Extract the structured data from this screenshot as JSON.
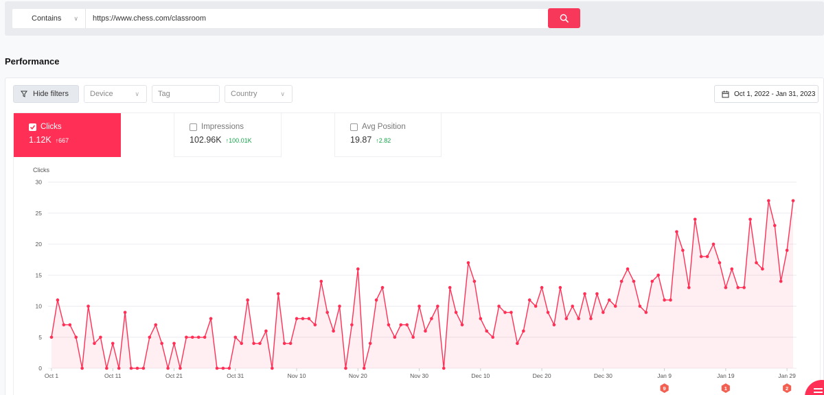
{
  "search": {
    "match_type": "Contains",
    "url": "https://www.chess.com/classroom"
  },
  "performance": {
    "title": "Performance"
  },
  "filters": {
    "hide_label": "Hide filters",
    "device_placeholder": "Device",
    "tag_placeholder": "Tag",
    "country_placeholder": "Country",
    "date_range": "Oct 1, 2022 - Jan 31, 2023"
  },
  "metrics": [
    {
      "label": "Clicks",
      "value": "1.12K",
      "delta": "↑667",
      "active": true
    },
    {
      "label": "Impressions",
      "value": "102.96K",
      "delta": "↑100.01K",
      "active": false
    },
    {
      "label": "Avg Position",
      "value": "19.87",
      "delta": "↑2.82",
      "active": false
    }
  ],
  "colors": {
    "accent": "#ff2f55",
    "positive": "#16a34a"
  },
  "chart_data": {
    "type": "area",
    "ylabel": "Clicks",
    "ylim": [
      0,
      30
    ],
    "yticks": [
      0,
      5,
      10,
      15,
      20,
      25,
      30
    ],
    "x_start": "Oct 1",
    "x_ticks": [
      {
        "label": "Oct 1",
        "day": 0
      },
      {
        "label": "Oct 11",
        "day": 10
      },
      {
        "label": "Oct 21",
        "day": 20
      },
      {
        "label": "Oct 31",
        "day": 30
      },
      {
        "label": "Nov 10",
        "day": 40
      },
      {
        "label": "Nov 20",
        "day": 50
      },
      {
        "label": "Nov 30",
        "day": 60
      },
      {
        "label": "Dec 10",
        "day": 70
      },
      {
        "label": "Dec 20",
        "day": 80
      },
      {
        "label": "Dec 30",
        "day": 90
      },
      {
        "label": "Jan 9",
        "day": 100
      },
      {
        "label": "Jan 19",
        "day": 110
      },
      {
        "label": "Jan 29",
        "day": 120
      }
    ],
    "series": [
      {
        "values": [
          5,
          11,
          7,
          7,
          5,
          0,
          10,
          4,
          5,
          0,
          4,
          0,
          9,
          0,
          0,
          0,
          5,
          7,
          4,
          0,
          4,
          0,
          5,
          5,
          5,
          5,
          8,
          0,
          0,
          0,
          5,
          4,
          11,
          4,
          4,
          6,
          0,
          12,
          4,
          4,
          8,
          8,
          8,
          7,
          14,
          9,
          6,
          10,
          0,
          7,
          16,
          0,
          4,
          11,
          13,
          7,
          5,
          7,
          7,
          5,
          10,
          6,
          8,
          10,
          0,
          13,
          9,
          7,
          17,
          14,
          8,
          6,
          5,
          10,
          9,
          9,
          4,
          6,
          11,
          10,
          13,
          9,
          7,
          13,
          8,
          10,
          8,
          12,
          8,
          12,
          9,
          11,
          10,
          14,
          16,
          14,
          10,
          9,
          14,
          15,
          11,
          11,
          22,
          19,
          13,
          24,
          18,
          18,
          20,
          17,
          13,
          16,
          13,
          13,
          24,
          17,
          16,
          27,
          23,
          14,
          19,
          27
        ]
      }
    ],
    "annotations": [
      {
        "day": 100,
        "label": "9"
      },
      {
        "day": 110,
        "label": "1"
      },
      {
        "day": 120,
        "label": "2"
      }
    ]
  }
}
